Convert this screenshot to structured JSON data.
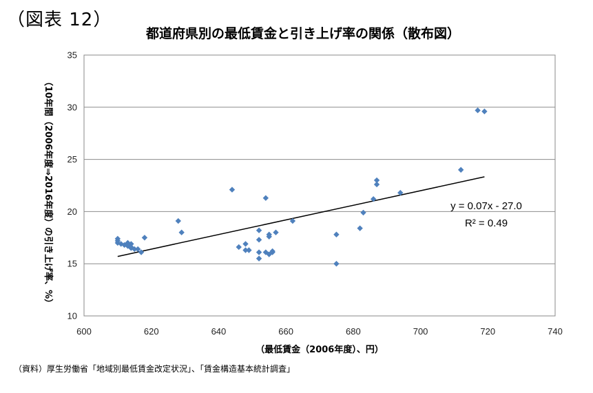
{
  "figure_label": "（図表 12）",
  "source_note": "（資料）厚生労働省「地域別最低賃金改定状況」、「賃金構造基本統計調査」",
  "chart_data": {
    "type": "scatter",
    "title": "都道府県別の最低賃金と引き上げ率の関係（散布図）",
    "xlabel": "（最低賃金（2006年度）、円）",
    "ylabel": "（10年間（2006年度⇒2016年度）の引き上げ率、%）",
    "xlim": [
      600,
      740
    ],
    "ylim": [
      10,
      35
    ],
    "xticks": [
      "600",
      "620",
      "640",
      "660",
      "680",
      "700",
      "720",
      "740"
    ],
    "yticks": [
      "10",
      "15",
      "20",
      "25",
      "30",
      "35"
    ],
    "grid": "horizontal",
    "marker_color": "#4f81bd",
    "trendline": {
      "equation": "y = 0.07x - 27.0",
      "r_squared_label": "R² = 0.49",
      "slope": 0.07,
      "intercept": -27.0,
      "x_range": [
        610,
        719
      ]
    },
    "points": [
      {
        "x": 610,
        "y": 17.4
      },
      {
        "x": 610,
        "y": 17.2
      },
      {
        "x": 610,
        "y": 17.0
      },
      {
        "x": 611,
        "y": 16.9
      },
      {
        "x": 612,
        "y": 16.8
      },
      {
        "x": 613,
        "y": 17.0
      },
      {
        "x": 613,
        "y": 16.7
      },
      {
        "x": 614,
        "y": 16.9
      },
      {
        "x": 614,
        "y": 16.6
      },
      {
        "x": 614,
        "y": 16.5
      },
      {
        "x": 615,
        "y": 16.4
      },
      {
        "x": 616,
        "y": 16.4
      },
      {
        "x": 617,
        "y": 16.1
      },
      {
        "x": 618,
        "y": 17.5
      },
      {
        "x": 628,
        "y": 19.1
      },
      {
        "x": 629,
        "y": 18.0
      },
      {
        "x": 644,
        "y": 22.1
      },
      {
        "x": 646,
        "y": 16.6
      },
      {
        "x": 648,
        "y": 16.9
      },
      {
        "x": 648,
        "y": 16.3
      },
      {
        "x": 649,
        "y": 16.3
      },
      {
        "x": 652,
        "y": 18.2
      },
      {
        "x": 652,
        "y": 17.3
      },
      {
        "x": 652,
        "y": 16.1
      },
      {
        "x": 652,
        "y": 15.5
      },
      {
        "x": 654,
        "y": 21.3
      },
      {
        "x": 654,
        "y": 16.1
      },
      {
        "x": 655,
        "y": 17.8
      },
      {
        "x": 655,
        "y": 17.6
      },
      {
        "x": 655,
        "y": 15.9
      },
      {
        "x": 656,
        "y": 16.1
      },
      {
        "x": 656,
        "y": 16.2
      },
      {
        "x": 657,
        "y": 18.0
      },
      {
        "x": 662,
        "y": 19.1
      },
      {
        "x": 675,
        "y": 17.8
      },
      {
        "x": 675,
        "y": 15.0
      },
      {
        "x": 682,
        "y": 18.4
      },
      {
        "x": 683,
        "y": 19.9
      },
      {
        "x": 686,
        "y": 21.2
      },
      {
        "x": 687,
        "y": 23.0
      },
      {
        "x": 687,
        "y": 22.6
      },
      {
        "x": 694,
        "y": 21.8
      },
      {
        "x": 712,
        "y": 24.0
      },
      {
        "x": 717,
        "y": 29.7
      },
      {
        "x": 719,
        "y": 29.6
      }
    ]
  }
}
